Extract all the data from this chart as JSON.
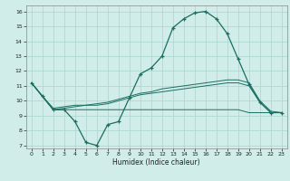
{
  "xlabel": "Humidex (Indice chaleur)",
  "x_ticks": [
    0,
    1,
    2,
    3,
    4,
    5,
    6,
    7,
    8,
    9,
    10,
    11,
    12,
    13,
    14,
    15,
    16,
    17,
    18,
    19,
    20,
    21,
    22,
    23
  ],
  "xlim": [
    -0.5,
    23.5
  ],
  "ylim": [
    6.8,
    16.4
  ],
  "y_ticks": [
    7,
    8,
    9,
    10,
    11,
    12,
    13,
    14,
    15,
    16
  ],
  "background_color": "#d0ede9",
  "grid_color": "#a8d4cf",
  "line_color": "#1a6e62",
  "curve_main_y": [
    11.2,
    10.3,
    9.4,
    9.4,
    8.6,
    7.2,
    7.0,
    8.4,
    8.6,
    10.2,
    11.8,
    12.2,
    13.0,
    14.9,
    15.5,
    15.9,
    16.0,
    15.5,
    14.5,
    12.8,
    11.1,
    9.9,
    9.2,
    9.2
  ],
  "curve_flat_y": [
    11.2,
    10.3,
    9.4,
    9.4,
    9.4,
    9.4,
    9.4,
    9.4,
    9.4,
    9.4,
    9.4,
    9.4,
    9.4,
    9.4,
    9.4,
    9.4,
    9.4,
    9.4,
    9.4,
    9.4,
    9.2,
    9.2,
    9.2,
    9.2
  ],
  "curve_mid_y": [
    11.2,
    10.3,
    9.4,
    9.5,
    9.6,
    9.7,
    9.7,
    9.8,
    10.0,
    10.2,
    10.4,
    10.5,
    10.6,
    10.7,
    10.8,
    10.9,
    11.0,
    11.1,
    11.2,
    11.2,
    11.0,
    9.9,
    9.2,
    9.2
  ],
  "curve_upper_y": [
    11.2,
    10.3,
    9.5,
    9.6,
    9.7,
    9.7,
    9.8,
    9.9,
    10.1,
    10.3,
    10.5,
    10.6,
    10.8,
    10.9,
    11.0,
    11.1,
    11.2,
    11.3,
    11.4,
    11.4,
    11.2,
    10.0,
    9.3,
    9.2
  ]
}
